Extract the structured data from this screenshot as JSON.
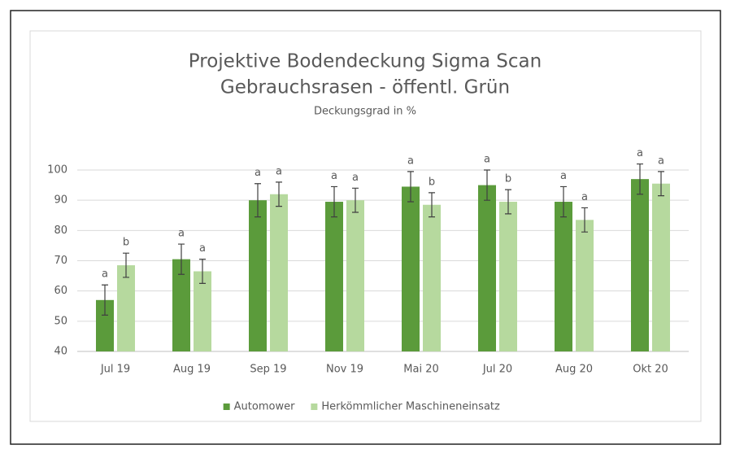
{
  "chart_data": {
    "type": "bar",
    "title": "Projektive Bodendeckung Sigma Scan",
    "subtitle": "Gebrauchsrasen - öffentl. Grün",
    "ylabel": "Deckungsgrad in %",
    "categories": [
      "Jul 19",
      "Aug 19",
      "Sep 19",
      "Nov 19",
      "Mai 20",
      "Jul 20",
      "Aug 20",
      "Okt 20"
    ],
    "series": [
      {
        "name": "Automower",
        "color": "#5b9b3b",
        "values": [
          57,
          70.5,
          90,
          89.5,
          94.5,
          95,
          89.5,
          97
        ],
        "errors": [
          5,
          5,
          5.5,
          5,
          5,
          5,
          5,
          5
        ],
        "letters": [
          "a",
          "a",
          "a",
          "a",
          "a",
          "a",
          "a",
          "a"
        ]
      },
      {
        "name": "Herkömmlicher Maschineneinsatz",
        "color": "#b6d99e",
        "values": [
          68.5,
          66.5,
          92,
          90,
          88.5,
          89.5,
          83.5,
          95.5
        ],
        "errors": [
          4,
          4,
          4,
          4,
          4,
          4,
          4,
          4
        ],
        "letters": [
          "b",
          "a",
          "a",
          "a",
          "b",
          "b",
          "a",
          "a"
        ]
      }
    ],
    "ylim": [
      40,
      100
    ],
    "yticks": [
      40,
      50,
      60,
      70,
      80,
      90,
      100
    ],
    "grid": true,
    "legend": "bottom"
  }
}
